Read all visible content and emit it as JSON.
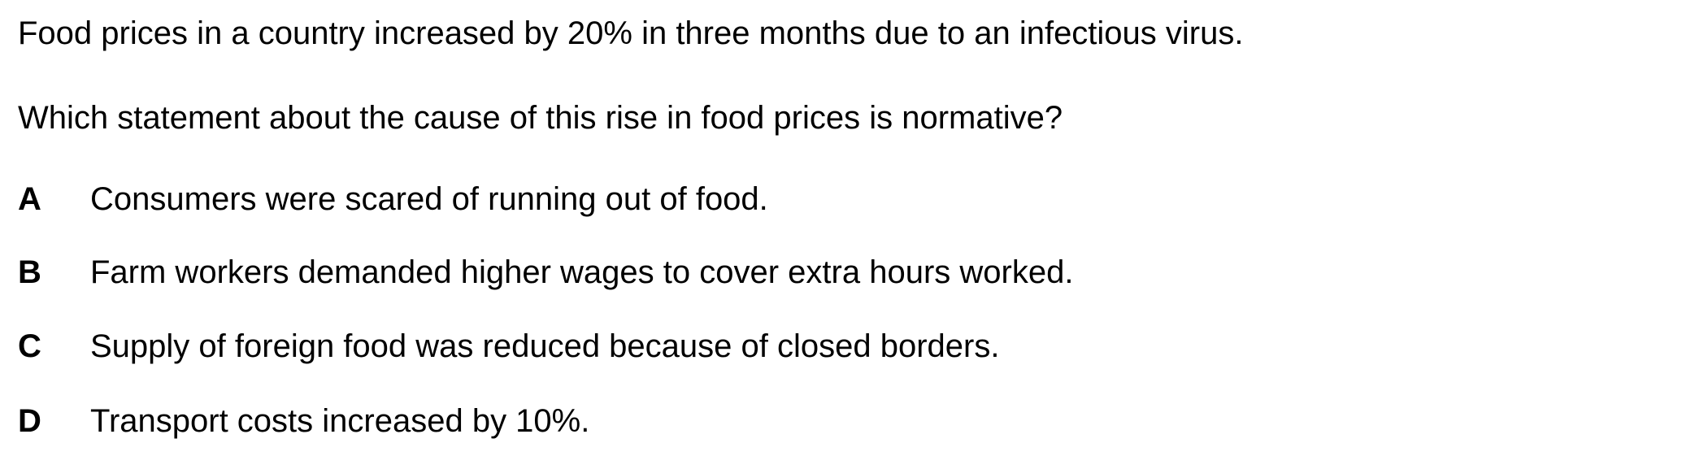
{
  "question": {
    "context": "Food prices in a country increased by 20% in three months due to an infectious virus.",
    "prompt": "Which statement about the cause of this rise in food prices is normative?",
    "options": [
      {
        "letter": "A",
        "text": "Consumers were scared of running out of food."
      },
      {
        "letter": "B",
        "text": "Farm workers demanded higher wages to cover extra hours worked."
      },
      {
        "letter": "C",
        "text": "Supply of foreign food was reduced because of closed borders."
      },
      {
        "letter": "D",
        "text": "Transport costs increased by 10%."
      }
    ]
  }
}
